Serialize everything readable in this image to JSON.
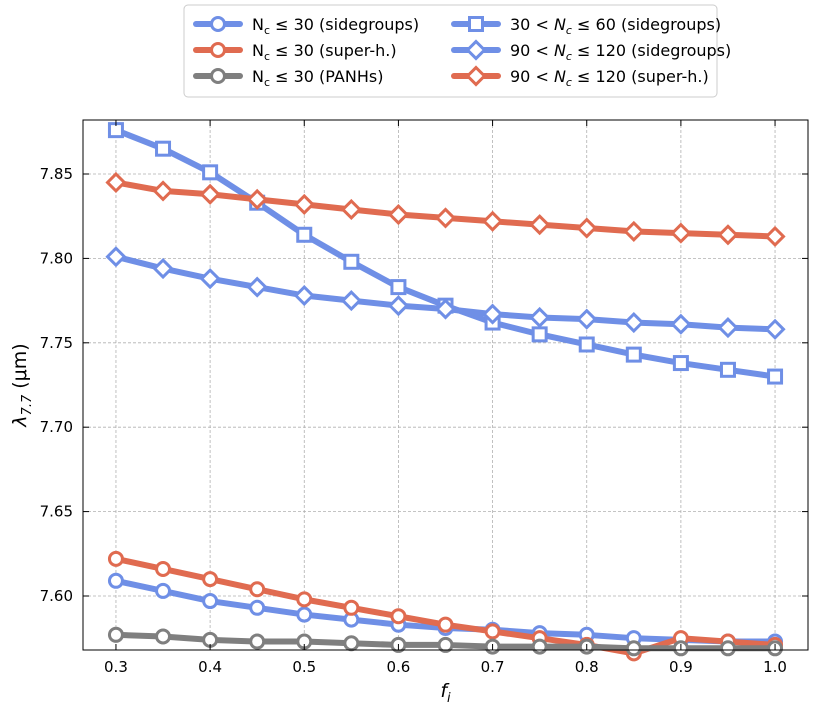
{
  "chart_data": {
    "type": "line",
    "xlabel": "f",
    "xlabel_sub": "i",
    "ylabel": "λ",
    "ylabel_sub": "7.7",
    "ylabel_unit": " (μm)",
    "xlim": [
      0.265,
      1.035
    ],
    "ylim": [
      7.568,
      7.882
    ],
    "xticks": [
      0.3,
      0.4,
      0.5,
      0.6,
      0.7,
      0.8,
      0.9,
      1.0
    ],
    "xtick_labels": [
      "0.3",
      "0.4",
      "0.5",
      "0.6",
      "0.7",
      "0.8",
      "0.9",
      "1.0"
    ],
    "yticks": [
      7.6,
      7.65,
      7.7,
      7.75,
      7.8,
      7.85
    ],
    "ytick_labels": [
      "7.60",
      "7.65",
      "7.70",
      "7.75",
      "7.80",
      "7.85"
    ],
    "grid": true,
    "legend_position": "top-center, above plot, 2 columns",
    "x": [
      0.3,
      0.35,
      0.4,
      0.45,
      0.5,
      0.55,
      0.6,
      0.65,
      0.7,
      0.75,
      0.8,
      0.85,
      0.9,
      0.95,
      1.0
    ],
    "series": [
      {
        "name": "N_c ≤ 30 (sidegroups)",
        "legend": {
          "pre": "N",
          "sub": "c",
          "post": " ≤ 30 (sidegroups)",
          "italic": false
        },
        "color": "#6f8fe6",
        "marker": "circle",
        "values": [
          7.609,
          7.603,
          7.597,
          7.593,
          7.589,
          7.586,
          7.583,
          7.581,
          7.58,
          7.578,
          7.577,
          7.575,
          7.574,
          7.573,
          7.573
        ]
      },
      {
        "name": "N_c ≤ 30 (super-h.)",
        "legend": {
          "pre": "N",
          "sub": "c",
          "post": " ≤ 30 (super-h.)",
          "italic": false
        },
        "color": "#e06b50",
        "marker": "circle",
        "values": [
          7.622,
          7.616,
          7.61,
          7.604,
          7.598,
          7.593,
          7.588,
          7.583,
          7.579,
          7.575,
          7.571,
          7.566,
          7.575,
          7.573,
          7.571
        ]
      },
      {
        "name": "N_c ≤ 30 (PANHs)",
        "legend": {
          "pre": "N",
          "sub": "c",
          "post": " ≤ 30 (PANHs)",
          "italic": false
        },
        "color": "#7f7f7f",
        "marker": "circle",
        "values": [
          7.577,
          7.576,
          7.574,
          7.573,
          7.573,
          7.572,
          7.571,
          7.571,
          7.57,
          7.57,
          7.57,
          7.569,
          7.569,
          7.569,
          7.569
        ]
      },
      {
        "name": "30 < N_c ≤ 60 (sidegroups)",
        "legend": {
          "pre": "30 < ",
          "mid": "N",
          "sub": "c",
          "post": " ≤ 60 (sidegroups)",
          "italic": true
        },
        "color": "#6f8fe6",
        "marker": "square",
        "values": [
          7.876,
          7.865,
          7.851,
          7.833,
          7.814,
          7.798,
          7.783,
          7.772,
          7.762,
          7.755,
          7.749,
          7.743,
          7.738,
          7.734,
          7.73
        ]
      },
      {
        "name": "90 < N_c ≤ 120 (sidegroups)",
        "legend": {
          "pre": "90 < ",
          "mid": "N",
          "sub": "c",
          "post": " ≤ 120 (sidegroups)",
          "italic": true
        },
        "color": "#6f8fe6",
        "marker": "diamond",
        "values": [
          7.801,
          7.794,
          7.788,
          7.783,
          7.778,
          7.775,
          7.772,
          7.77,
          7.767,
          7.765,
          7.764,
          7.762,
          7.761,
          7.759,
          7.758
        ]
      },
      {
        "name": "90 < N_c ≤ 120 (super-h.)",
        "legend": {
          "pre": "90 < ",
          "mid": "N",
          "sub": "c",
          "post": " ≤ 120 (super-h.)",
          "italic": true
        },
        "color": "#e06b50",
        "marker": "diamond",
        "values": [
          7.845,
          7.84,
          7.838,
          7.835,
          7.832,
          7.829,
          7.826,
          7.824,
          7.822,
          7.82,
          7.818,
          7.816,
          7.815,
          7.814,
          7.813
        ]
      }
    ]
  }
}
